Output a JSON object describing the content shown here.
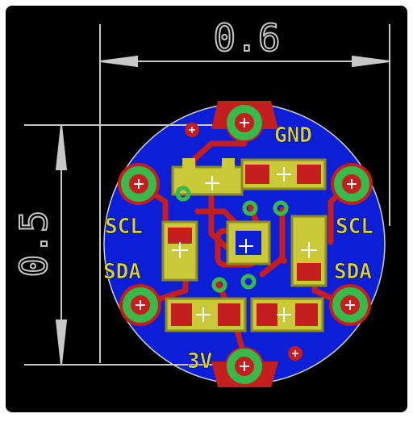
{
  "dimensions": {
    "width_label": "0.6",
    "height_label": "0.5"
  },
  "silkscreen": {
    "gnd": "GND",
    "scl_left": "SCL",
    "scl_right": "SCL",
    "sda_left": "SDA",
    "sda_right": "SDA",
    "power": "3V"
  },
  "colors": {
    "background": "#000000",
    "frame": "#ffffff",
    "copper_bottom": "#0c1fd6",
    "copper_top": "#c41e1e",
    "pad": "#c9c93a",
    "pad_dark": "#8a8a20",
    "via_ring": "#39b94a",
    "silk": "#e8e8e8",
    "dimension": "#c8c8c8",
    "text_yellow": "#d8d24a"
  }
}
